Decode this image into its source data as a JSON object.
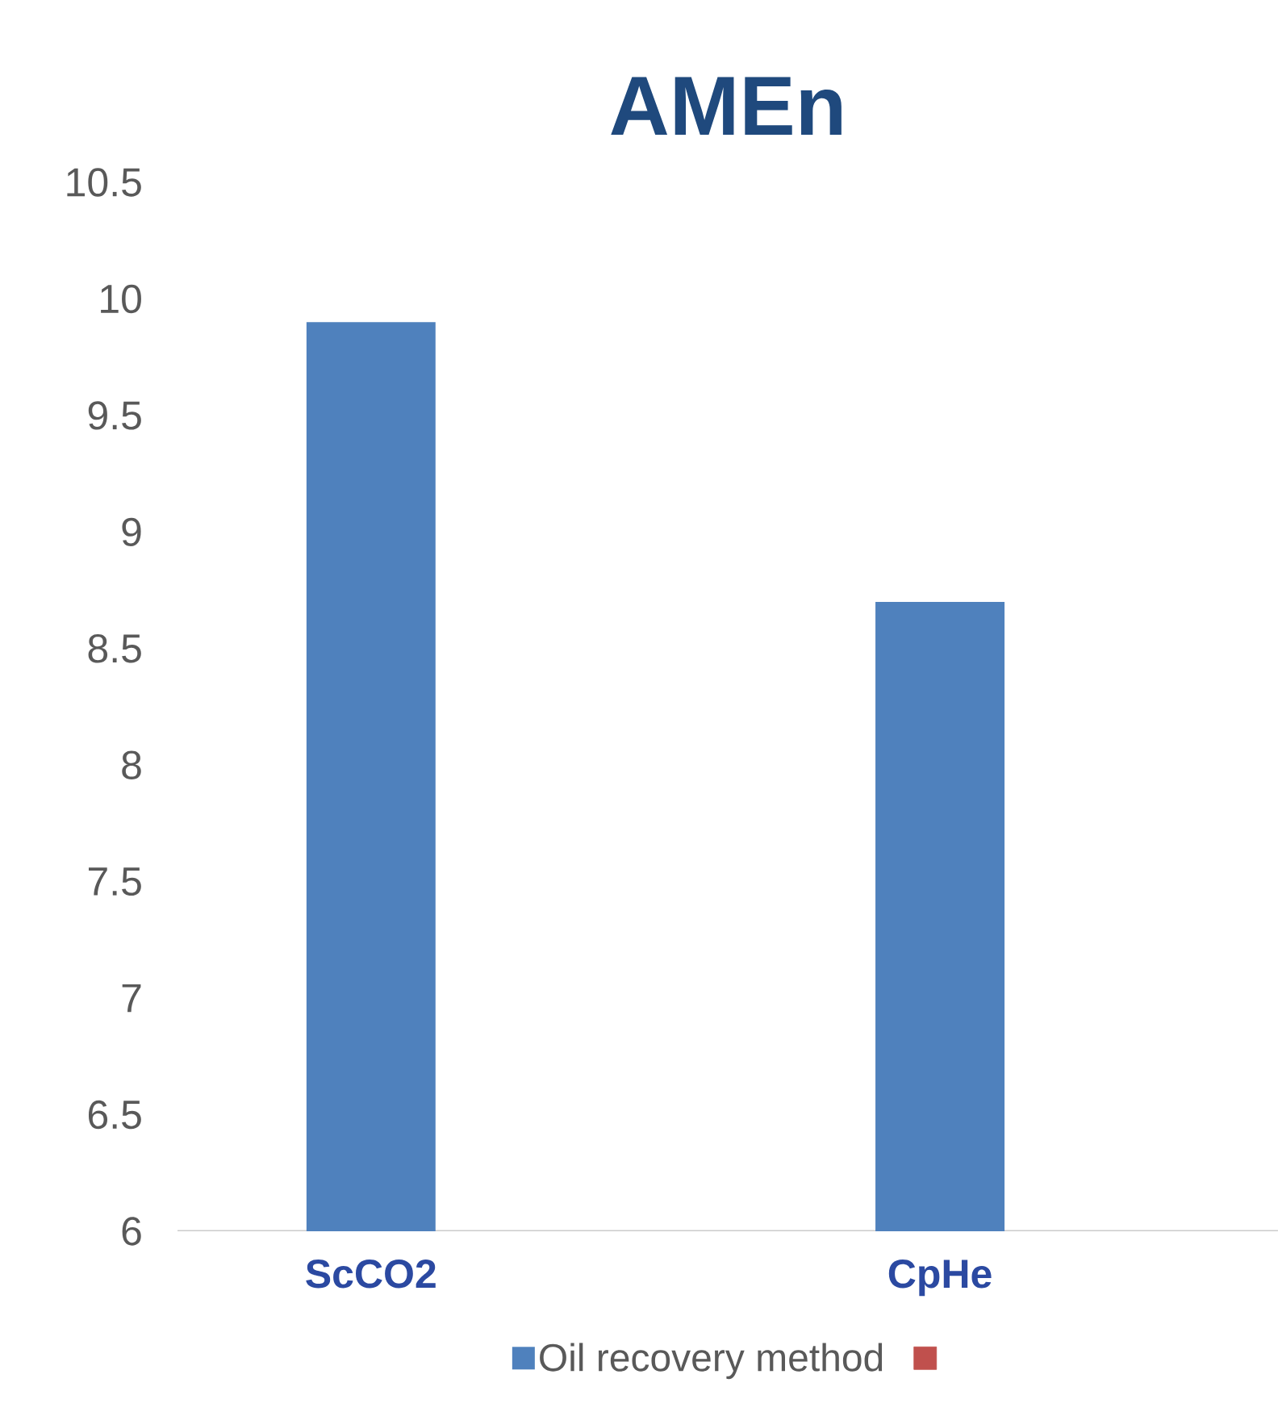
{
  "chart_data": {
    "type": "bar",
    "title": "AMEn",
    "categories": [
      "ScCO2",
      "CpHe"
    ],
    "series": [
      {
        "name": "Oil recovery method",
        "color": "#4f81bd",
        "values": [
          9.9,
          8.7
        ]
      },
      {
        "color": "#c0504d",
        "values": [
          null,
          null
        ]
      }
    ],
    "ylim": [
      6,
      10.5
    ],
    "yticks": [
      6,
      6.5,
      7,
      7.5,
      8,
      8.5,
      9,
      9.5,
      10,
      10.5
    ],
    "grid": false,
    "legend": "bottom"
  }
}
